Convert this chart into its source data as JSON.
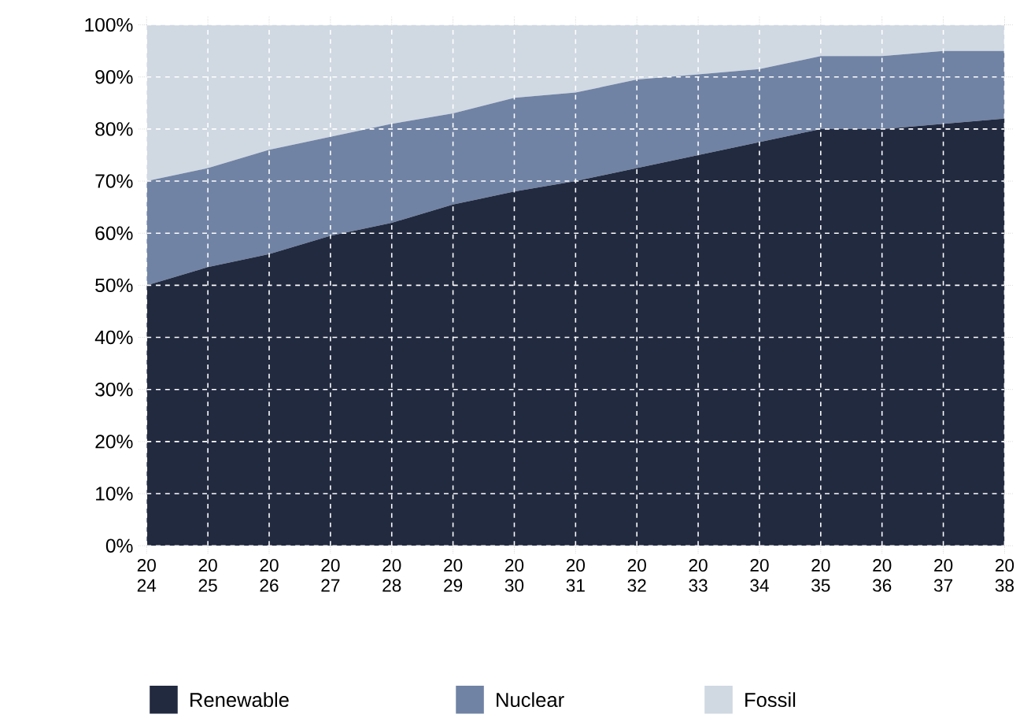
{
  "chart_data": {
    "type": "area",
    "stacked": true,
    "grid": true,
    "legend": "bottom",
    "categories": [
      "20 24",
      "20 25",
      "20 26",
      "20 27",
      "20 28",
      "20 29",
      "20 30",
      "20 31",
      "20 32",
      "20 33",
      "20 34",
      "20 35",
      "20 36",
      "20 37",
      "20 38"
    ],
    "ylim": [
      0,
      100
    ],
    "yticks": [
      {
        "value": 0,
        "label": "0%"
      },
      {
        "value": 10,
        "label": "10%"
      },
      {
        "value": 20,
        "label": "20%"
      },
      {
        "value": 30,
        "label": "30%"
      },
      {
        "value": 40,
        "label": "40%"
      },
      {
        "value": 50,
        "label": "50%"
      },
      {
        "value": 60,
        "label": "60%"
      },
      {
        "value": 70,
        "label": "70%"
      },
      {
        "value": 80,
        "label": "80%"
      },
      {
        "value": 90,
        "label": "90%"
      },
      {
        "value": 100,
        "label": "100%"
      }
    ],
    "series": [
      {
        "name": "Renewable",
        "color": "#222a40",
        "values": [
          50,
          53.5,
          56,
          59.5,
          62,
          65.5,
          68,
          70,
          72.5,
          75,
          77.5,
          80,
          80,
          81,
          82
        ]
      },
      {
        "name": "Nuclear",
        "color": "#7083a4",
        "values": [
          20,
          19,
          20,
          19,
          19,
          17.5,
          18,
          17,
          17,
          15.5,
          14,
          14,
          14,
          14,
          13
        ]
      },
      {
        "name": "Fossil",
        "color": "#d0d8e2",
        "values": [
          30,
          27.5,
          24,
          21.5,
          19,
          17,
          14,
          13,
          10.5,
          9.5,
          8.5,
          6,
          6,
          5,
          5
        ]
      }
    ]
  }
}
